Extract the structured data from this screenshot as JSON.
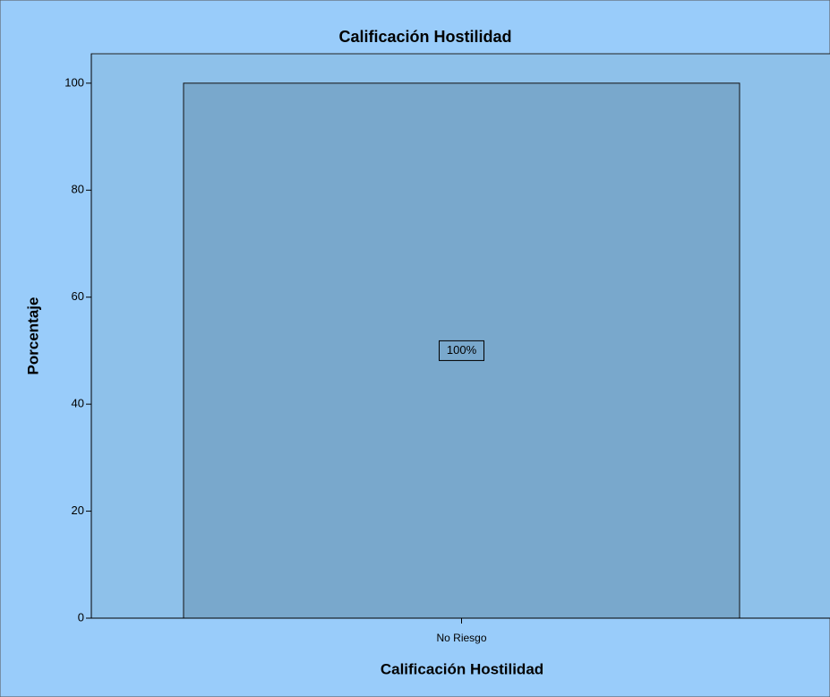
{
  "chart_data": {
    "type": "bar",
    "title": "Calificación Hostilidad",
    "x_label": "Calificación Hostilidad",
    "y_label": "Porcentaje",
    "categories": [
      "No Riesgo"
    ],
    "values": [
      100
    ],
    "value_labels": [
      "100%"
    ],
    "color": "#79a8cc",
    "ylim": [
      0,
      105.5
    ],
    "yticks": [
      0,
      20,
      40,
      60,
      80,
      100
    ],
    "grid": false
  }
}
